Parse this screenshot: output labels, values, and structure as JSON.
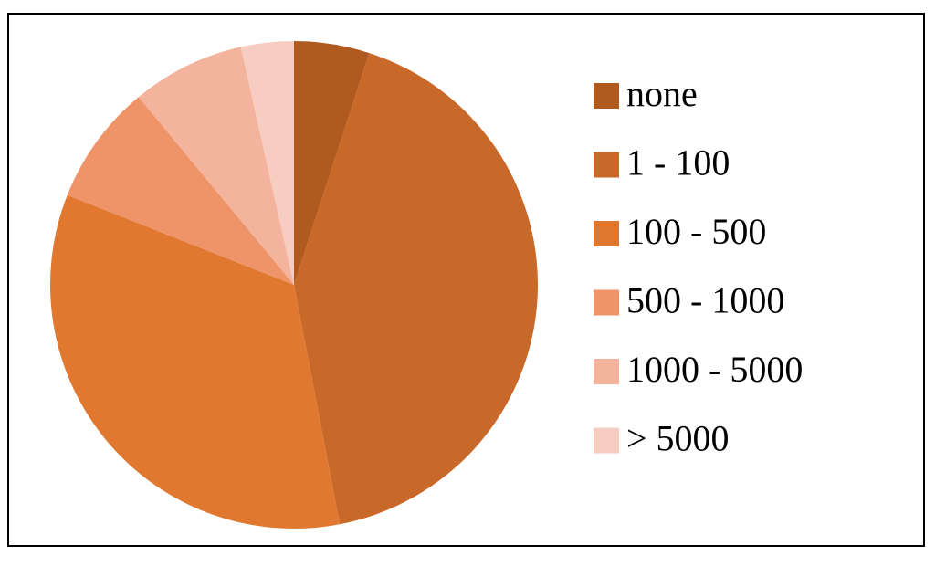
{
  "chart_data": {
    "type": "pie",
    "categories": [
      "none",
      "1 - 100",
      "100 - 500",
      "500 - 1000",
      "1000 - 5000",
      "> 5000"
    ],
    "values": [
      5,
      42,
      34,
      8,
      7.5,
      3.5
    ],
    "colors": [
      "#b05a20",
      "#c8692a",
      "#e07830",
      "#ef9468",
      "#f3b39c",
      "#f6cdc0"
    ],
    "legend": "right"
  }
}
